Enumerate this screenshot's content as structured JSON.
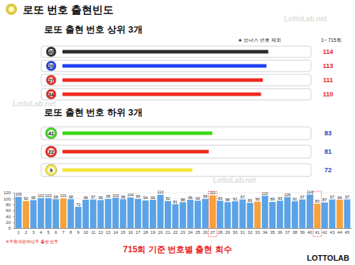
{
  "chart_data": [
    {
      "type": "bar",
      "orientation": "horizontal",
      "title": "로또 번호 출현빈도",
      "subtitle": "로또 출현 번호 상위 3개",
      "annotations": [
        "★ 보너스 번호 제외",
        "1~ 715회",
        "LottoLab.net"
      ],
      "categories": [
        "40",
        "20",
        "27",
        "34"
      ],
      "values": [
        114,
        113,
        111,
        110
      ],
      "colors": [
        "#2b2b2b",
        "#1f3ff0",
        "#ee2a1f",
        "#ee2a1f"
      ],
      "xlim": [
        0,
        118
      ],
      "data_labels": true,
      "tick_labels": false
    },
    {
      "type": "bar",
      "orientation": "horizontal",
      "title": "로또 출현 번호 하위 3개",
      "categories": [
        "41",
        "22",
        "9"
      ],
      "values": [
        83,
        81,
        72
      ],
      "colors": [
        "#39d815",
        "#ee2a1f",
        "#f3e53a"
      ],
      "xlim": [
        0,
        118
      ],
      "data_labels": true,
      "tick_labels": false
    },
    {
      "type": "bar",
      "title": "715회 기준 번호별 출현 회수",
      "annotations": [
        "※주황색은해당주 출현 번호",
        "LOTTOLAB"
      ],
      "categories": [
        "1",
        "2",
        "3",
        "4",
        "5",
        "6",
        "7",
        "8",
        "9",
        "10",
        "11",
        "12",
        "13",
        "14",
        "15",
        "16",
        "17",
        "18",
        "19",
        "20",
        "21",
        "22",
        "23",
        "24",
        "25",
        "26",
        "27",
        "28",
        "29",
        "30",
        "31",
        "32",
        "33",
        "34",
        "35",
        "36",
        "37",
        "38",
        "39",
        "40",
        "41",
        "42",
        "43",
        "44",
        "45"
      ],
      "values": [
        106,
        92,
        95,
        102,
        102,
        98,
        101,
        98,
        72,
        96,
        97,
        95,
        99,
        103,
        98,
        104,
        99,
        94,
        96,
        113,
        92,
        81,
        88,
        96,
        93,
        99,
        111,
        93,
        88,
        91,
        97,
        86,
        90,
        110,
        89,
        93,
        105,
        91,
        97,
        114,
        83,
        87,
        97,
        96,
        97
      ],
      "colors": [
        "#5ba3e6",
        "#f7a13b",
        "#5ba3e6",
        "#5ba3e6",
        "#5ba3e6",
        "#5ba3e6",
        "#f7a13b",
        "#5ba3e6",
        "#5ba3e6",
        "#5ba3e6",
        "#5ba3e6",
        "#5ba3e6",
        "#5ba3e6",
        "#5ba3e6",
        "#5ba3e6",
        "#5ba3e6",
        "#5ba3e6",
        "#5ba3e6",
        "#5ba3e6",
        "#5ba3e6",
        "#5ba3e6",
        "#5ba3e6",
        "#5ba3e6",
        "#5ba3e6",
        "#5ba3e6",
        "#5ba3e6",
        "#f7a13b",
        "#5ba3e6",
        "#5ba3e6",
        "#5ba3e6",
        "#5ba3e6",
        "#5ba3e6",
        "#f7a13b",
        "#5ba3e6",
        "#5ba3e6",
        "#5ba3e6",
        "#5ba3e6",
        "#5ba3e6",
        "#5ba3e6",
        "#5ba3e6",
        "#f7a13b",
        "#5ba3e6",
        "#5ba3e6",
        "#f7a13b",
        "#5ba3e6"
      ],
      "ylim": [
        0,
        120
      ],
      "yticks": [
        0,
        20,
        40,
        60,
        80,
        100,
        120
      ],
      "grid": true,
      "data_labels": true
    }
  ]
}
